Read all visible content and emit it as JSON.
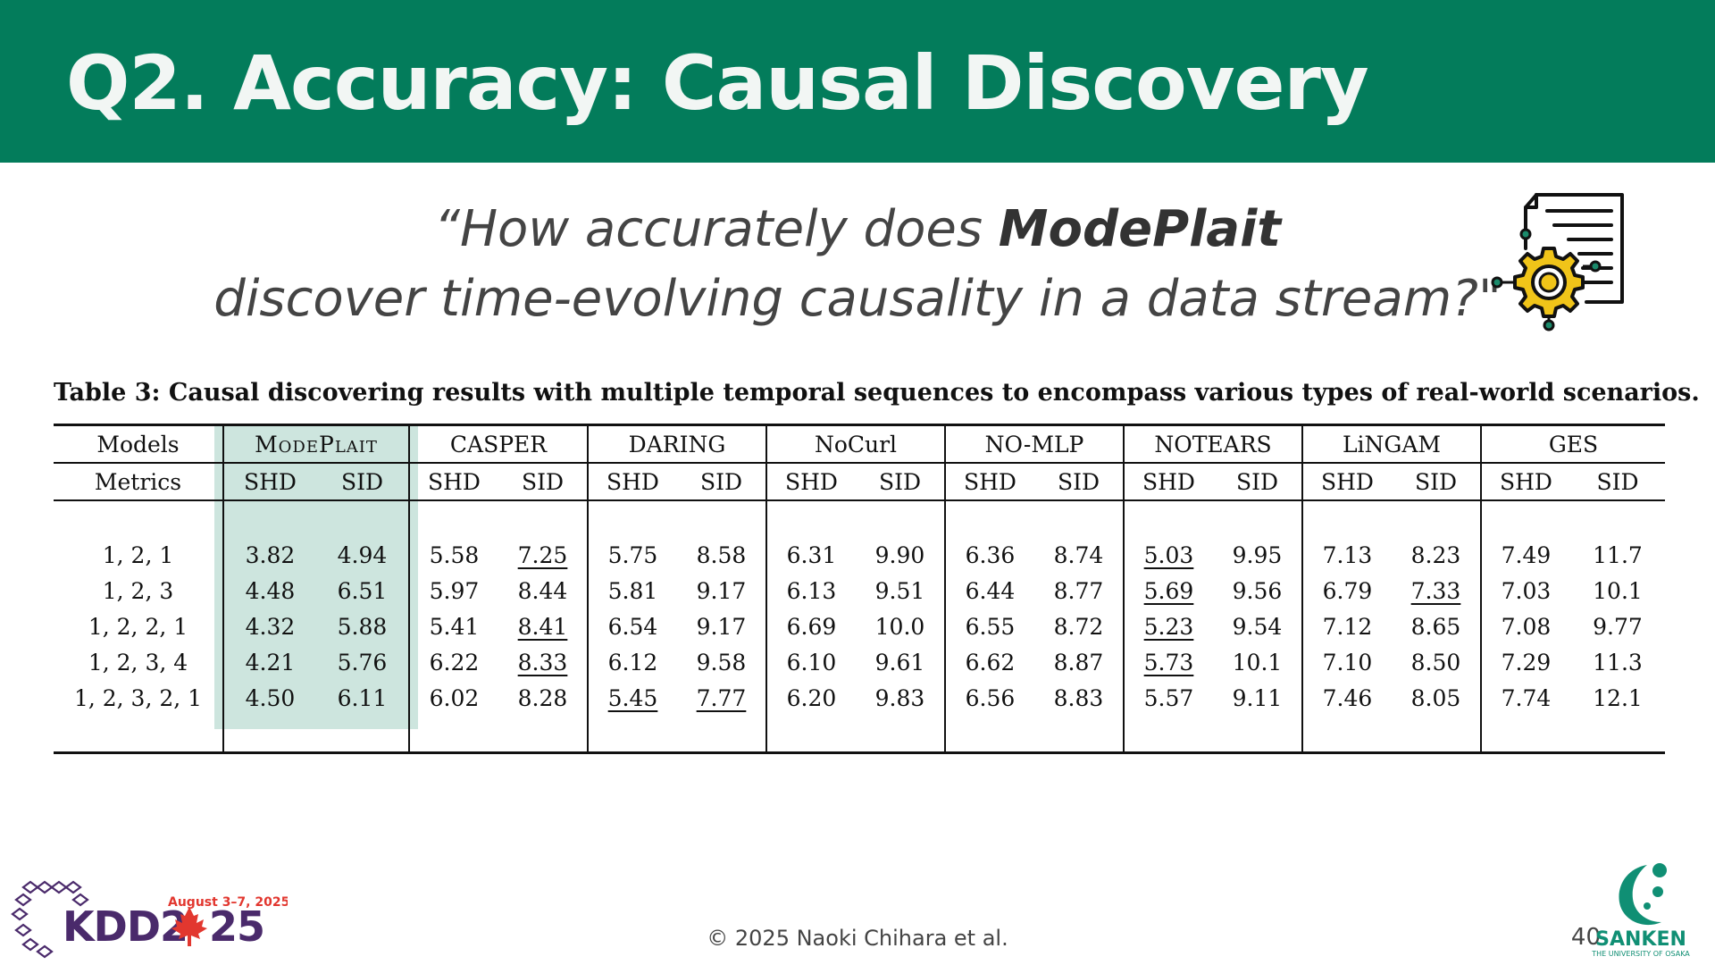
{
  "slide": {
    "title": "Q2. Accuracy: Causal Discovery",
    "question": {
      "line1_pre": "“How accurately does ",
      "method_name": "ModePlait",
      "line2": "discover time-evolving causality in a data stream?\""
    },
    "icon": "document-gear-icon"
  },
  "table": {
    "caption": "Table 3: Causal discovering results with multiple temporal sequences to encompass various types of real-world scenarios.",
    "models_label": "Models",
    "metrics_label": "Metrics",
    "models": [
      "ModePlait",
      "CASPER",
      "DARING",
      "NoCurl",
      "NO-MLP",
      "NOTEARS",
      "LiNGAM",
      "GES"
    ],
    "metric_names": [
      "SHD",
      "SID"
    ],
    "rows": [
      {
        "label": "1, 2, 1",
        "values": [
          "3.82",
          "4.94",
          "5.58",
          "7.25",
          "5.75",
          "8.58",
          "6.31",
          "9.90",
          "6.36",
          "8.74",
          "5.03",
          "9.95",
          "7.13",
          "8.23",
          "7.49",
          "11.7"
        ],
        "underlined": [
          3,
          10
        ]
      },
      {
        "label": "1, 2, 3",
        "values": [
          "4.48",
          "6.51",
          "5.97",
          "8.44",
          "5.81",
          "9.17",
          "6.13",
          "9.51",
          "6.44",
          "8.77",
          "5.69",
          "9.56",
          "6.79",
          "7.33",
          "7.03",
          "10.1"
        ],
        "underlined": [
          10,
          13
        ]
      },
      {
        "label": "1, 2, 2, 1",
        "values": [
          "4.32",
          "5.88",
          "5.41",
          "8.41",
          "6.54",
          "9.17",
          "6.69",
          "10.0",
          "6.55",
          "8.72",
          "5.23",
          "9.54",
          "7.12",
          "8.65",
          "7.08",
          "9.77"
        ],
        "underlined": [
          3,
          10
        ]
      },
      {
        "label": "1, 2, 3, 4",
        "values": [
          "4.21",
          "5.76",
          "6.22",
          "8.33",
          "6.12",
          "9.58",
          "6.10",
          "9.61",
          "6.62",
          "8.87",
          "5.73",
          "10.1",
          "7.10",
          "8.50",
          "7.29",
          "11.3"
        ],
        "underlined": [
          3,
          10
        ]
      },
      {
        "label": "1, 2, 3, 2, 1",
        "values": [
          "4.50",
          "6.11",
          "6.02",
          "8.28",
          "5.45",
          "7.77",
          "6.20",
          "9.83",
          "6.56",
          "8.83",
          "5.57",
          "9.11",
          "7.46",
          "8.05",
          "7.74",
          "12.1"
        ],
        "underlined": [
          4,
          5
        ]
      }
    ],
    "highlight_color": "#cde5de"
  },
  "footer": {
    "copyright": "© 2025 Naoki Chihara et al.",
    "page_number": "40",
    "kdd_logo": {
      "dates": "August 3–7, 2025",
      "text_left": "KDD2",
      "text_right": "25"
    },
    "sanken_logo": {
      "name": "SANKEN",
      "subtitle": "THE UNIVERSITY OF OSAKA"
    }
  },
  "colors": {
    "header_bg": "#037c5b",
    "title_text": "#f2f6f4",
    "kdd_purple": "#4a2a6b",
    "kdd_red": "#e2372f",
    "sanken_teal": "#108f74"
  }
}
